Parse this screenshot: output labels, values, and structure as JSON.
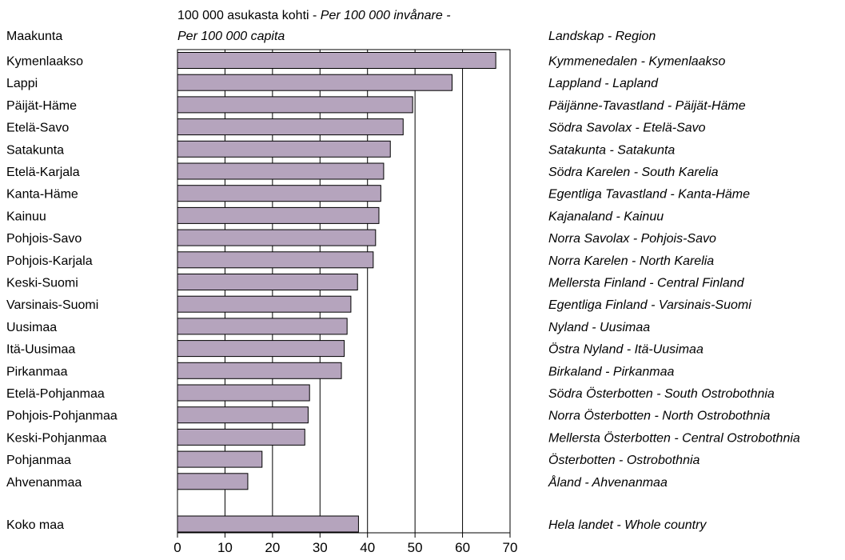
{
  "chart_data": {
    "type": "bar",
    "orientation": "horizontal",
    "header_left": "Maakunta",
    "header_right": "Landskap - Region",
    "unit_line1": "100 000 asukasta kohti - ",
    "unit_line1_italic": "Per 100 000 invånare -",
    "unit_line2_italic": "Per 100 000 capita",
    "categories": [
      "Kymenlaakso",
      "Lappi",
      "Päijät-Häme",
      "Etelä-Savo",
      "Satakunta",
      "Etelä-Karjala",
      "Kanta-Häme",
      "Kainuu",
      "Pohjois-Savo",
      "Pohjois-Karjala",
      "Keski-Suomi",
      "Varsinais-Suomi",
      "Uusimaa",
      "Itä-Uusimaa",
      "Pirkanmaa",
      "Etelä-Pohjanmaa",
      "Pohjois-Pohjanmaa",
      "Keski-Pohjanmaa",
      "Pohjanmaa",
      "Ahvenanmaa"
    ],
    "categories_translated": [
      "Kymmenedalen - Kymenlaakso",
      "Lappland - Lapland",
      "Päijänne-Tavastland - Päijät-Häme",
      "Södra Savolax - Etelä-Savo",
      "Satakunta - Satakunta",
      "Södra Karelen - South Karelia",
      "Egentliga Tavastland - Kanta-Häme",
      "Kajanaland - Kainuu",
      "Norra Savolax - Pohjois-Savo",
      "Norra Karelen - North Karelia",
      "Mellersta Finland - Central Finland",
      "Egentliga Finland - Varsinais-Suomi",
      "Nyland - Uusimaa",
      "Östra Nyland - Itä-Uusimaa",
      "Birkaland - Pirkanmaa",
      "Södra Österbotten - South Ostrobothnia",
      "Norra Österbotten - North Ostrobothnia",
      "Mellersta Österbotten - Central Ostrobothnia",
      "Österbotten - Ostrobothnia",
      "Åland - Ahvenanmaa"
    ],
    "values": [
      67,
      57.8,
      49.5,
      47.5,
      44.8,
      43.4,
      42.8,
      42.4,
      41.7,
      41.2,
      37.9,
      36.5,
      35.7,
      35.1,
      34.5,
      27.8,
      27.5,
      26.8,
      17.8,
      14.8
    ],
    "total": {
      "label": "Koko maa",
      "label_translated": "Hela landet - Whole country",
      "value": 38.1
    },
    "xlim": [
      0,
      70
    ],
    "xticks": [
      "0",
      "10",
      "20",
      "30",
      "40",
      "50",
      "60",
      "70"
    ],
    "grid": true,
    "colors": {
      "bar": "#b5a4bd",
      "bar_edge": "#000000",
      "grid": "#000000"
    }
  }
}
